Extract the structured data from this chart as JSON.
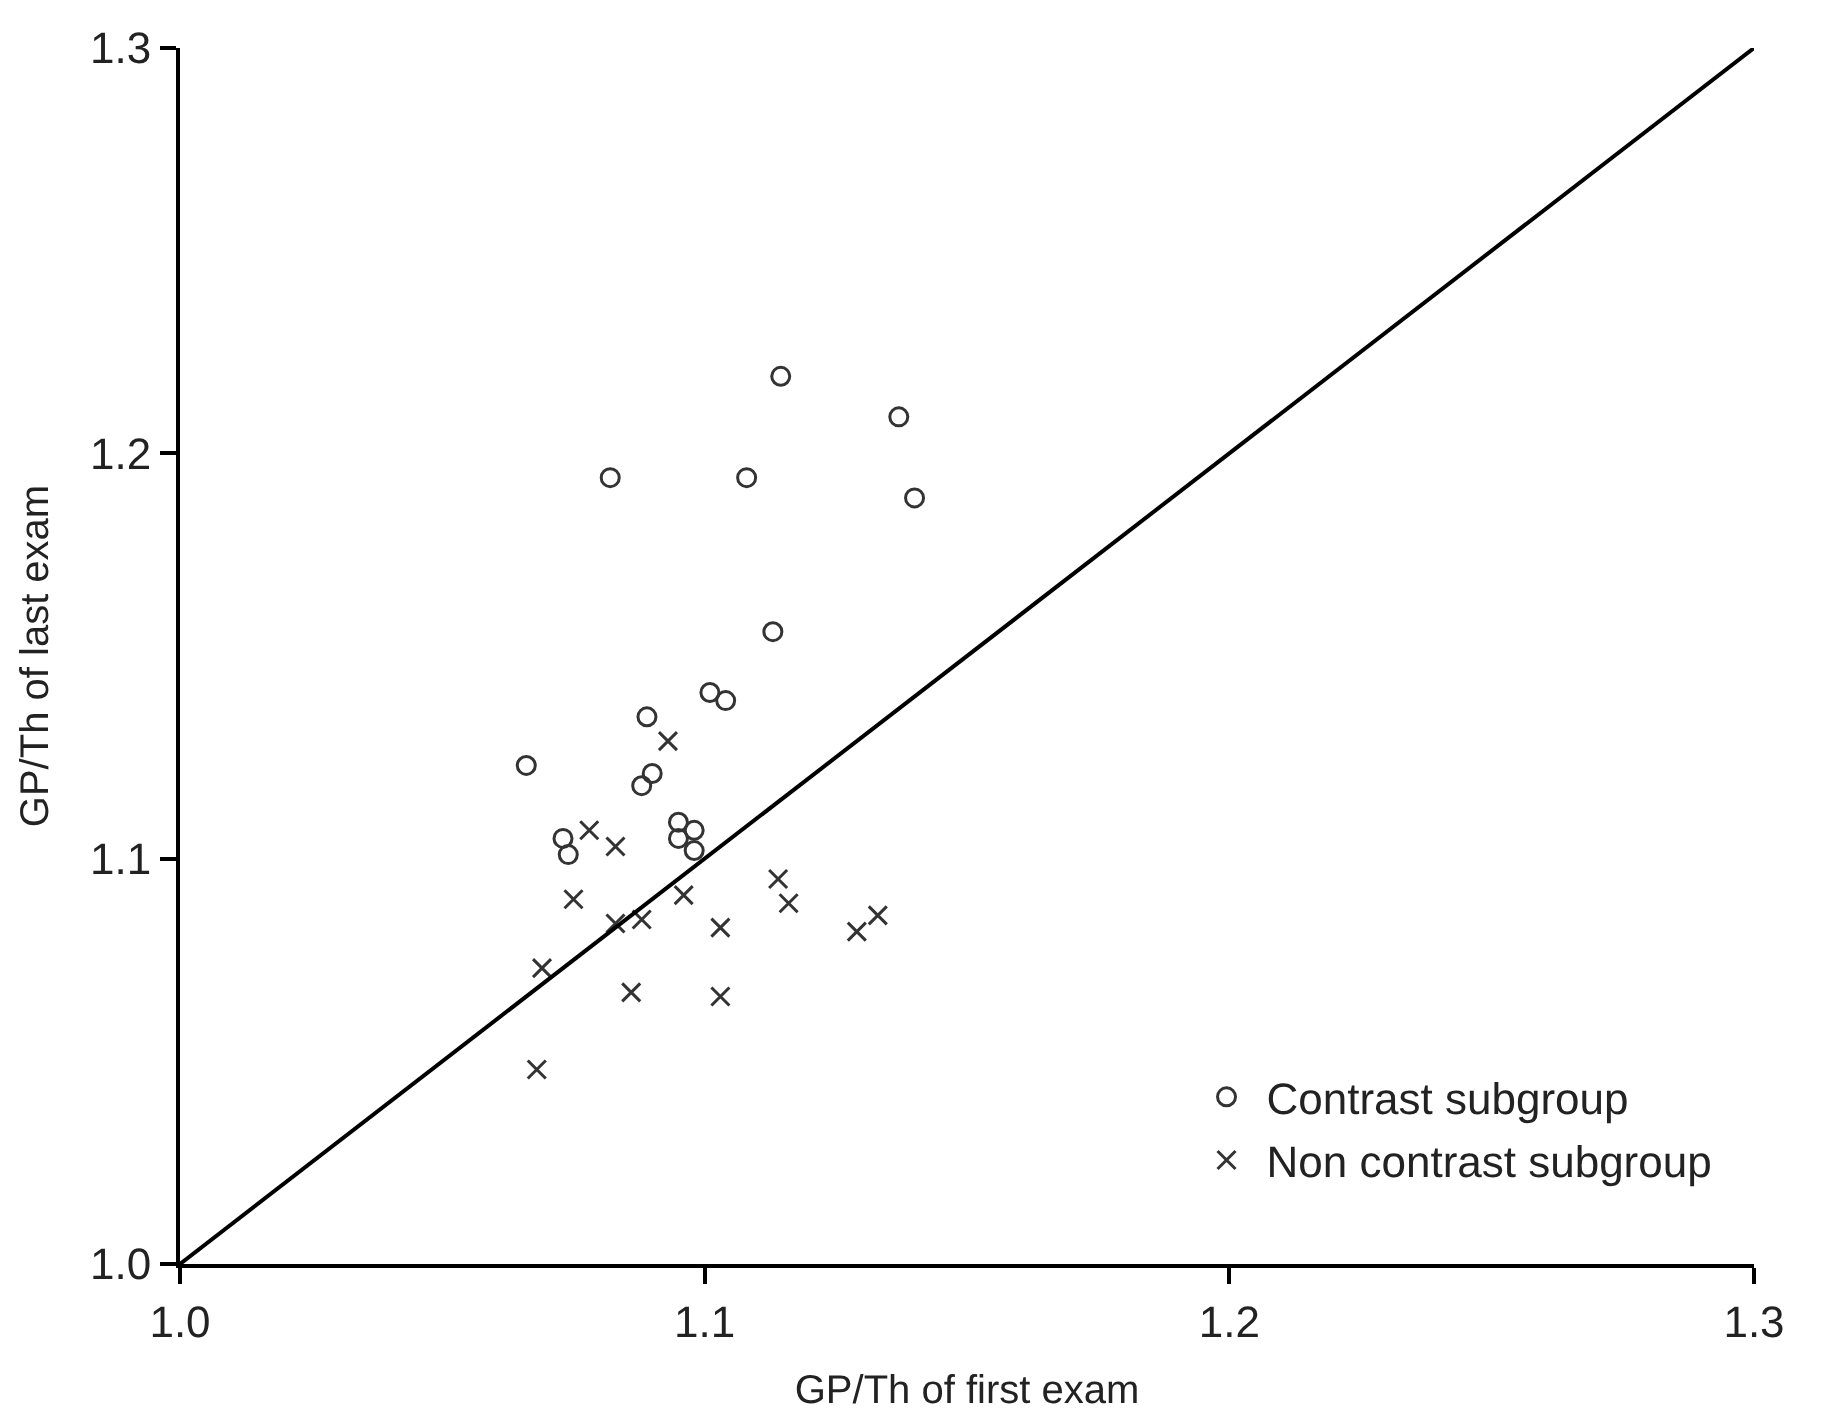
{
  "chart_data": {
    "type": "scatter",
    "xlabel": "GP/Th of first exam",
    "ylabel": "GP/Th of last exam",
    "xlim": [
      1.0,
      1.3
    ],
    "ylim": [
      1.0,
      1.3
    ],
    "xticks": [
      {
        "value": 1.0,
        "label": "1.0"
      },
      1.1,
      1.2,
      1.3
    ],
    "yticks": [
      {
        "value": 1.0,
        "label": "1.0"
      },
      1.1,
      1.2,
      1.3
    ],
    "legend": "bottom right",
    "series": [
      {
        "name": "Contrast subgroup",
        "color": "#333333",
        "marker": "circle",
        "x": [
          1.1145,
          1.137,
          1.082,
          1.108,
          1.14,
          1.113,
          1.101,
          1.104,
          1.089,
          1.066,
          1.09,
          1.088,
          1.073,
          1.074,
          1.095,
          1.098,
          1.095,
          1.098
        ],
        "values": [
          1.219,
          1.209,
          1.194,
          1.194,
          1.189,
          1.156,
          1.141,
          1.139,
          1.135,
          1.123,
          1.121,
          1.118,
          1.105,
          1.101,
          1.109,
          1.107,
          1.105,
          1.102
        ]
      },
      {
        "name": "Non contrast subgroup",
        "color": "#333333",
        "marker": "cross",
        "x": [
          1.093,
          1.078,
          1.083,
          1.075,
          1.083,
          1.088,
          1.096,
          1.114,
          1.116,
          1.103,
          1.133,
          1.129,
          1.069,
          1.086,
          1.103,
          1.068
        ],
        "values": [
          1.129,
          1.107,
          1.103,
          1.09,
          1.084,
          1.085,
          1.091,
          1.095,
          1.089,
          1.083,
          1.086,
          1.082,
          1.073,
          1.067,
          1.066,
          1.048
        ]
      },
      {
        "type": "line",
        "color": "#000000",
        "line_style": "solid",
        "x": [
          1.0,
          1.3
        ],
        "values": [
          1.0,
          1.3
        ]
      }
    ]
  }
}
